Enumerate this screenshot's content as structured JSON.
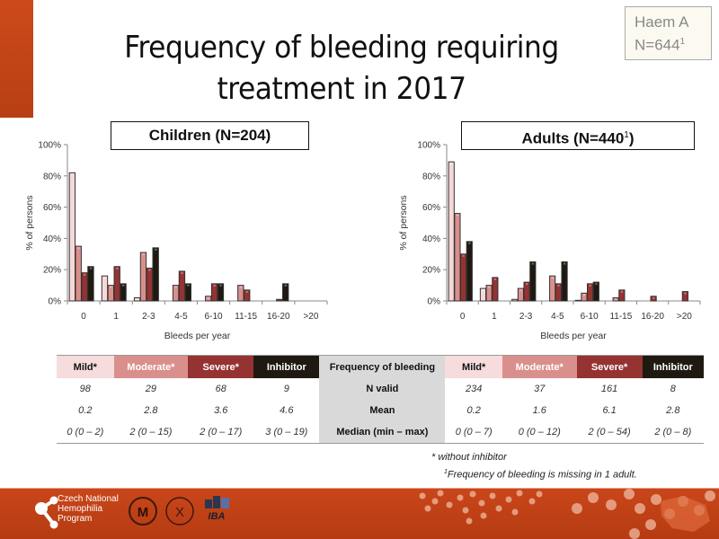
{
  "slide": {
    "title_line1": "Frequency of bleeding requiring",
    "title_line2": "treatment in 2017",
    "haem_box": {
      "line1": "Haem A",
      "line2": "N=644",
      "sup": "1"
    }
  },
  "colors": {
    "Mild": "#f6d8d8",
    "Moderate": "#d98f8b",
    "Severe": "#953232",
    "Inhibitor": "#1e1a12",
    "accent": "#c9461a"
  },
  "chart_data": [
    {
      "type": "bar",
      "title": "Children (N=204)",
      "title_sup": "",
      "xlabel": "Bleeds per year",
      "ylabel": "% of persons",
      "ylim": [
        0,
        100
      ],
      "yticks": [
        "0%",
        "20%",
        "40%",
        "60%",
        "80%",
        "100%"
      ],
      "categories": [
        "0",
        "1",
        "2-3",
        "4-5",
        "6-10",
        "11-15",
        "16-20",
        ">20"
      ],
      "series": [
        {
          "name": "Mild",
          "values": [
            82,
            16,
            2,
            0,
            0,
            0,
            0,
            0
          ]
        },
        {
          "name": "Moderate",
          "values": [
            35,
            10,
            31,
            10,
            3,
            10,
            0,
            0
          ]
        },
        {
          "name": "Severe",
          "values": [
            18,
            22,
            21,
            19,
            11,
            7,
            1,
            0
          ]
        },
        {
          "name": "Inhibitor",
          "values": [
            22,
            11,
            34,
            11,
            11,
            0,
            11,
            0
          ]
        }
      ],
      "grid": false
    },
    {
      "type": "bar",
      "title": "Adults (N=440",
      "title_sup": "1",
      "title_end": ")",
      "xlabel": "Bleeds per year",
      "ylabel": "% of persons",
      "ylim": [
        0,
        100
      ],
      "yticks": [
        "0%",
        "20%",
        "40%",
        "60%",
        "80%",
        "100%"
      ],
      "categories": [
        "0",
        "1",
        "2-3",
        "4-5",
        "6-10",
        "11-15",
        "16-20",
        ">20"
      ],
      "series": [
        {
          "name": "Mild",
          "values": [
            89,
            8,
            1,
            0,
            0.4,
            0,
            0,
            0
          ]
        },
        {
          "name": "Moderate",
          "values": [
            56,
            10,
            8,
            16,
            5,
            2,
            0,
            0
          ]
        },
        {
          "name": "Severe",
          "values": [
            30,
            15,
            12,
            11,
            11,
            7,
            3,
            6
          ]
        },
        {
          "name": "Inhibitor",
          "values": [
            38,
            0,
            25,
            25,
            12,
            0,
            0,
            0
          ]
        }
      ],
      "grid": false
    }
  ],
  "table": {
    "left_headers": [
      "Mild*",
      "Moderate*",
      "Severe*",
      "Inhibitor"
    ],
    "middle_header": "Frequency of bleeding",
    "right_headers": [
      "Mild*",
      "Moderate*",
      "Severe*",
      "Inhibitor"
    ],
    "rows": [
      {
        "label": "N valid",
        "children": [
          "98",
          "29",
          "68",
          "9"
        ],
        "adults": [
          "234",
          "37",
          "161",
          "8"
        ]
      },
      {
        "label": "Mean",
        "children": [
          "0.2",
          "2.8",
          "3.6",
          "4.6"
        ],
        "adults": [
          "0.2",
          "1.6",
          "6.1",
          "2.8"
        ]
      },
      {
        "label": "Median (min – max)",
        "children": [
          "0 (0 – 2)",
          "2 (0 – 15)",
          "2 (0 – 17)",
          "3 (0 – 19)"
        ],
        "adults": [
          "0 (0 – 7)",
          "0 (0 – 12)",
          "2 (0 – 54)",
          "2 (0 – 8)"
        ]
      }
    ]
  },
  "footnotes": {
    "note1": "* without inhibitor",
    "note2_sup": "1",
    "note2": "Frequency of bleeding is missing in 1 adult."
  },
  "footer": {
    "logo_text": [
      "Czech National",
      "Hemophilia",
      "Program"
    ],
    "iba_label": "IBA"
  }
}
